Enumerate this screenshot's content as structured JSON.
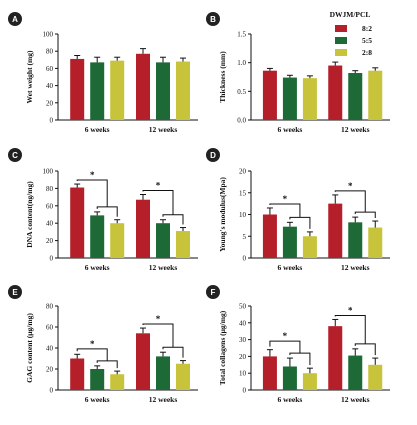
{
  "legend": {
    "title": "DWJM/PCL",
    "entries": [
      {
        "label": "8:2",
        "color": "#b51f2a"
      },
      {
        "label": "5:5",
        "color": "#1d6a36"
      },
      {
        "label": "2:8",
        "color": "#c7c43c"
      }
    ]
  },
  "chart_data": [
    {
      "panel": "A",
      "type": "bar",
      "categories": [
        "6 weeks",
        "12 weeks"
      ],
      "series": [
        {
          "name": "8:2",
          "values": [
            71,
            77
          ],
          "errors": [
            4,
            6
          ]
        },
        {
          "name": "5:5",
          "values": [
            67,
            67
          ],
          "errors": [
            6,
            6
          ]
        },
        {
          "name": "2:8",
          "values": [
            69,
            68
          ],
          "errors": [
            4,
            4
          ]
        }
      ],
      "ylabel": "Wet weight (mg)",
      "ylim": [
        0,
        100
      ],
      "yticks": [
        0,
        20,
        40,
        60,
        80,
        100
      ],
      "significance": []
    },
    {
      "panel": "B",
      "type": "bar",
      "categories": [
        "6 weeks",
        "12 weeks"
      ],
      "series": [
        {
          "name": "8:2",
          "values": [
            0.86,
            0.95
          ],
          "errors": [
            0.04,
            0.06
          ]
        },
        {
          "name": "5:5",
          "values": [
            0.74,
            0.82
          ],
          "errors": [
            0.04,
            0.04
          ]
        },
        {
          "name": "2:8",
          "values": [
            0.73,
            0.86
          ],
          "errors": [
            0.04,
            0.05
          ]
        }
      ],
      "ylabel": "Thickness (mm)",
      "ylim": [
        0,
        1.5
      ],
      "yticks": [
        0.0,
        0.5,
        1.0,
        1.5
      ],
      "significance": []
    },
    {
      "panel": "C",
      "type": "bar",
      "categories": [
        "6 weeks",
        "12 weeks"
      ],
      "series": [
        {
          "name": "8:2",
          "values": [
            81,
            67
          ],
          "errors": [
            4,
            6
          ]
        },
        {
          "name": "5:5",
          "values": [
            49,
            40
          ],
          "errors": [
            4,
            4
          ]
        },
        {
          "name": "2:8",
          "values": [
            40,
            31
          ],
          "errors": [
            4,
            4
          ]
        }
      ],
      "ylabel": "DNA content(ng/mg)",
      "ylim": [
        0,
        100
      ],
      "yticks": [
        0,
        20,
        40,
        60,
        80,
        100
      ],
      "significance": [
        {
          "group": 0,
          "label": "*"
        },
        {
          "group": 1,
          "label": "*"
        }
      ]
    },
    {
      "panel": "D",
      "type": "bar",
      "categories": [
        "6 weeks",
        "12 weeks"
      ],
      "series": [
        {
          "name": "8:2",
          "values": [
            10,
            12.5
          ],
          "errors": [
            1.5,
            2
          ]
        },
        {
          "name": "5:5",
          "values": [
            7.2,
            8.2
          ],
          "errors": [
            1,
            1.2
          ]
        },
        {
          "name": "2:8",
          "values": [
            5,
            7
          ],
          "errors": [
            1,
            1.5
          ]
        }
      ],
      "ylabel": "Young's modulus(Mpa)",
      "ylim": [
        0,
        20
      ],
      "yticks": [
        0,
        5,
        10,
        15,
        20
      ],
      "significance": [
        {
          "group": 0,
          "label": "*"
        },
        {
          "group": 1,
          "label": "*"
        }
      ]
    },
    {
      "panel": "E",
      "type": "bar",
      "categories": [
        "6 weeks",
        "12 weeks"
      ],
      "series": [
        {
          "name": "8:2",
          "values": [
            30,
            54
          ],
          "errors": [
            4,
            5
          ]
        },
        {
          "name": "5:5",
          "values": [
            20,
            32
          ],
          "errors": [
            3,
            4
          ]
        },
        {
          "name": "2:8",
          "values": [
            15,
            25
          ],
          "errors": [
            3,
            3
          ]
        }
      ],
      "ylabel": "GAG content (μg/mg)",
      "ylim": [
        0,
        80
      ],
      "yticks": [
        0,
        20,
        40,
        60,
        80
      ],
      "significance": [
        {
          "group": 0,
          "label": "*"
        },
        {
          "group": 1,
          "label": "*"
        }
      ]
    },
    {
      "panel": "F",
      "type": "bar",
      "categories": [
        "6 weeks",
        "12 weeks"
      ],
      "series": [
        {
          "name": "8:2",
          "values": [
            20,
            38
          ],
          "errors": [
            4,
            4
          ]
        },
        {
          "name": "5:5",
          "values": [
            14,
            20.5
          ],
          "errors": [
            5,
            4
          ]
        },
        {
          "name": "2:8",
          "values": [
            10,
            15
          ],
          "errors": [
            3,
            4
          ]
        }
      ],
      "ylabel": "Total collagens (μg/mg)",
      "ylim": [
        0,
        50
      ],
      "yticks": [
        0,
        10,
        20,
        30,
        40,
        50
      ],
      "significance": [
        {
          "group": 0,
          "label": "*"
        },
        {
          "group": 1,
          "label": "*"
        }
      ]
    }
  ]
}
